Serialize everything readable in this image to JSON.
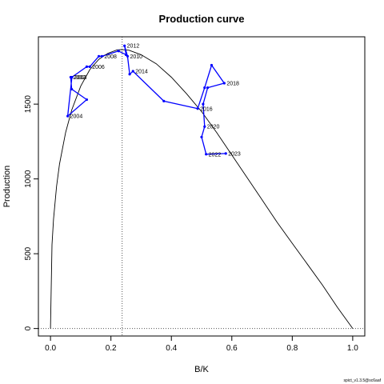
{
  "chart_data": {
    "type": "line",
    "title": "Production curve",
    "xlabel": "B/K",
    "ylabel": "Production",
    "xlim": [
      -0.04,
      1.04
    ],
    "ylim": [
      -50,
      1950
    ],
    "x_ticks": [
      0.0,
      0.2,
      0.4,
      0.6,
      0.8,
      1.0
    ],
    "x_tick_labels": [
      "0.0",
      "0.2",
      "0.4",
      "0.6",
      "0.8",
      "1.0"
    ],
    "y_ticks": [
      0,
      500,
      1000,
      1500
    ],
    "y_tick_labels": [
      "0",
      "500",
      "1000",
      "1500"
    ],
    "grid": false,
    "curve": {
      "x": [
        0.0,
        0.005,
        0.01,
        0.02,
        0.03,
        0.05,
        0.07,
        0.1,
        0.13,
        0.16,
        0.19,
        0.22,
        0.235,
        0.26,
        0.3,
        0.35,
        0.4,
        0.45,
        0.5,
        0.55,
        0.6,
        0.65,
        0.7,
        0.75,
        0.8,
        0.85,
        0.9,
        0.95,
        1.0
      ],
      "y": [
        0,
        560,
        730,
        950,
        1100,
        1310,
        1460,
        1620,
        1730,
        1800,
        1840,
        1862,
        1865,
        1860,
        1830,
        1770,
        1680,
        1570,
        1450,
        1310,
        1160,
        1010,
        860,
        710,
        570,
        430,
        290,
        140,
        0
      ],
      "color": "#000000"
    },
    "bmsy_vline": {
      "x": 0.237,
      "color": "#555555"
    },
    "zero_hline": {
      "y": 0,
      "color": "#555555"
    },
    "series": [
      {
        "color": "#0000ff",
        "points": [
          {
            "year": "2002",
            "x": 0.067,
            "y": 1680
          },
          {
            "year": "",
            "x": 0.07,
            "y": 1600
          },
          {
            "year": "",
            "x": 0.12,
            "y": 1530
          },
          {
            "year": "2004",
            "x": 0.057,
            "y": 1420
          },
          {
            "year": "2003",
            "x": 0.071,
            "y": 1680
          },
          {
            "year": "",
            "x": 0.12,
            "y": 1750
          },
          {
            "year": "2006",
            "x": 0.13,
            "y": 1750
          },
          {
            "year": "",
            "x": 0.16,
            "y": 1820
          },
          {
            "year": "2008",
            "x": 0.17,
            "y": 1820
          },
          {
            "year": "",
            "x": 0.225,
            "y": 1855
          },
          {
            "year": "",
            "x": 0.25,
            "y": 1830
          },
          {
            "year": "2012",
            "x": 0.245,
            "y": 1890
          },
          {
            "year": "2010",
            "x": 0.255,
            "y": 1820
          },
          {
            "year": "",
            "x": 0.262,
            "y": 1700
          },
          {
            "year": "2014",
            "x": 0.273,
            "y": 1720
          },
          {
            "year": "",
            "x": 0.375,
            "y": 1520
          },
          {
            "year": "2016",
            "x": 0.487,
            "y": 1470
          },
          {
            "year": "",
            "x": 0.51,
            "y": 1610
          },
          {
            "year": "",
            "x": 0.533,
            "y": 1760
          },
          {
            "year": "2018",
            "x": 0.575,
            "y": 1640
          },
          {
            "year": "",
            "x": 0.52,
            "y": 1610
          },
          {
            "year": "",
            "x": 0.505,
            "y": 1500
          },
          {
            "year": "2020",
            "x": 0.51,
            "y": 1350
          },
          {
            "year": "",
            "x": 0.5,
            "y": 1280
          },
          {
            "year": "2022",
            "x": 0.515,
            "y": 1165
          },
          {
            "year": "2023",
            "x": 0.58,
            "y": 1170
          }
        ]
      }
    ],
    "footer": "spict_v1.3.5@sc6aaf"
  }
}
